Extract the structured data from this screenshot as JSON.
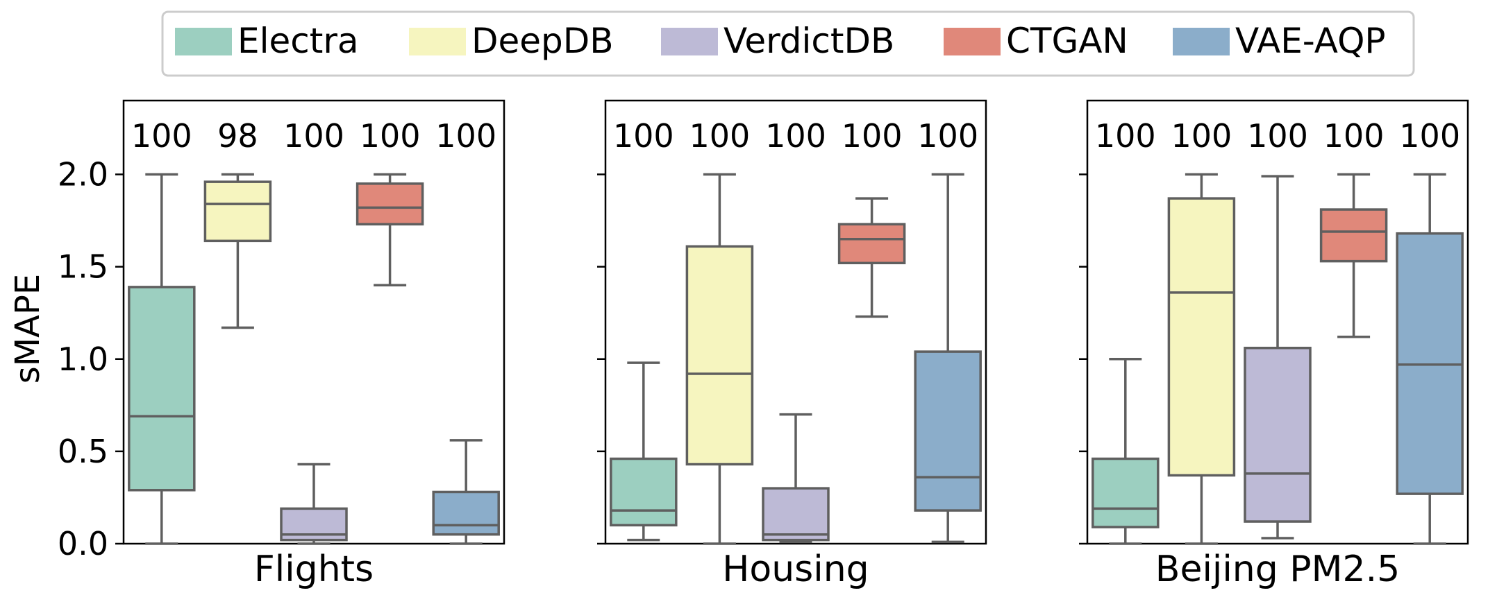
{
  "chart_data": {
    "type": "boxplot",
    "ylabel": "sMAPE",
    "ylim": [
      0,
      2.4
    ],
    "yticks": [
      "0.0",
      "0.5",
      "1.0",
      "1.5",
      "2.0"
    ],
    "grid": false,
    "legend": {
      "placement": "top-center",
      "entries": [
        {
          "name": "Electra",
          "color": "#9ccfc0"
        },
        {
          "name": "DeepDB",
          "color": "#f6f5bf"
        },
        {
          "name": "VerdictDB",
          "color": "#bdbad6"
        },
        {
          "name": "CTGAN",
          "color": "#e0887a"
        },
        {
          "name": "VAE-AQP",
          "color": "#8badca"
        }
      ]
    },
    "panels": [
      {
        "xlabel": "Flights",
        "boxes": [
          {
            "series": "Electra",
            "count": "100",
            "whisker_low": 0.0,
            "q1": 0.29,
            "median": 0.69,
            "q3": 1.39,
            "whisker_high": 2.0
          },
          {
            "series": "DeepDB",
            "count": "98",
            "whisker_low": 1.17,
            "q1": 1.64,
            "median": 1.84,
            "q3": 1.96,
            "whisker_high": 2.0
          },
          {
            "series": "VerdictDB",
            "count": "100",
            "whisker_low": 0.0,
            "q1": 0.02,
            "median": 0.05,
            "q3": 0.19,
            "whisker_high": 0.43
          },
          {
            "series": "CTGAN",
            "count": "100",
            "whisker_low": 1.4,
            "q1": 1.73,
            "median": 1.82,
            "q3": 1.95,
            "whisker_high": 2.0
          },
          {
            "series": "VAE-AQP",
            "count": "100",
            "whisker_low": 0.0,
            "q1": 0.05,
            "median": 0.1,
            "q3": 0.28,
            "whisker_high": 0.56
          }
        ]
      },
      {
        "xlabel": "Housing",
        "boxes": [
          {
            "series": "Electra",
            "count": "100",
            "whisker_low": 0.02,
            "q1": 0.1,
            "median": 0.18,
            "q3": 0.46,
            "whisker_high": 0.98
          },
          {
            "series": "DeepDB",
            "count": "100",
            "whisker_low": 0.0,
            "q1": 0.43,
            "median": 0.92,
            "q3": 1.61,
            "whisker_high": 2.0
          },
          {
            "series": "VerdictDB",
            "count": "100",
            "whisker_low": 0.01,
            "q1": 0.02,
            "median": 0.05,
            "q3": 0.3,
            "whisker_high": 0.7
          },
          {
            "series": "CTGAN",
            "count": "100",
            "whisker_low": 1.23,
            "q1": 1.52,
            "median": 1.65,
            "q3": 1.73,
            "whisker_high": 1.87
          },
          {
            "series": "VAE-AQP",
            "count": "100",
            "whisker_low": 0.01,
            "q1": 0.18,
            "median": 0.36,
            "q3": 1.04,
            "whisker_high": 2.0
          }
        ]
      },
      {
        "xlabel": "Beijing PM2.5",
        "boxes": [
          {
            "series": "Electra",
            "count": "100",
            "whisker_low": 0.0,
            "q1": 0.09,
            "median": 0.19,
            "q3": 0.46,
            "whisker_high": 1.0
          },
          {
            "series": "DeepDB",
            "count": "100",
            "whisker_low": 0.0,
            "q1": 0.37,
            "median": 1.36,
            "q3": 1.87,
            "whisker_high": 2.0
          },
          {
            "series": "VerdictDB",
            "count": "100",
            "whisker_low": 0.03,
            "q1": 0.12,
            "median": 0.38,
            "q3": 1.06,
            "whisker_high": 1.99
          },
          {
            "series": "CTGAN",
            "count": "100",
            "whisker_low": 1.12,
            "q1": 1.53,
            "median": 1.69,
            "q3": 1.81,
            "whisker_high": 2.0
          },
          {
            "series": "VAE-AQP",
            "count": "100",
            "whisker_low": 0.0,
            "q1": 0.27,
            "median": 0.97,
            "q3": 1.68,
            "whisker_high": 2.0
          }
        ]
      }
    ]
  }
}
